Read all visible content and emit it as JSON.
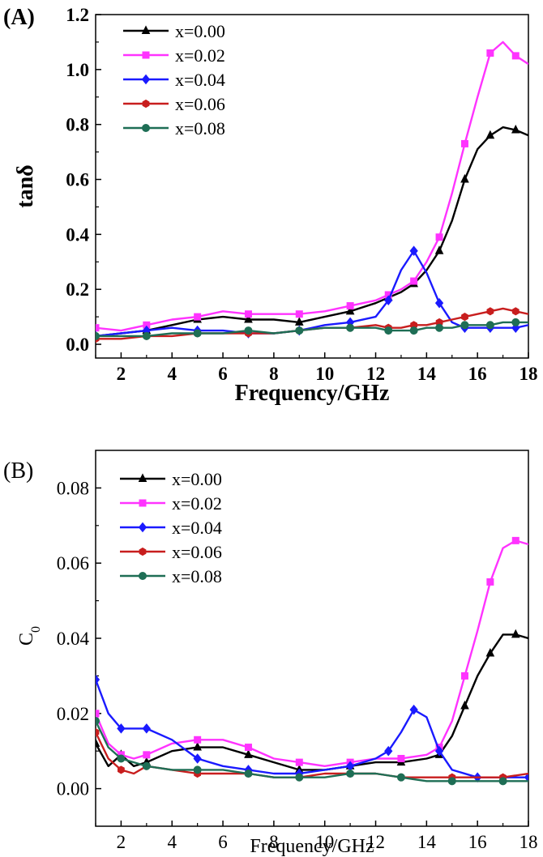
{
  "chart_data": [
    {
      "type": "line",
      "panel_label": "(A)",
      "xlabel": "Frequency/GHz",
      "ylabel": "tanδ",
      "xlim": [
        1,
        18
      ],
      "ylim": [
        -0.05,
        1.2
      ],
      "xticks": [
        2,
        4,
        6,
        8,
        10,
        12,
        14,
        16,
        18
      ],
      "yticks": [
        0.0,
        0.2,
        0.4,
        0.6,
        0.8,
        1.0,
        1.2
      ],
      "ytick_labels": [
        "0.0",
        "0.2",
        "0.4",
        "0.6",
        "0.8",
        "1.0",
        "1.2"
      ],
      "legend_position": "top-left",
      "series": [
        {
          "name": "x=0.00",
          "color": "#000000",
          "marker": "triangle",
          "x": [
            1,
            2,
            3,
            4,
            5,
            6,
            7,
            8,
            9,
            10,
            11,
            12,
            12.5,
            13,
            13.5,
            14,
            14.5,
            15,
            15.5,
            16,
            16.5,
            17,
            17.5,
            18
          ],
          "y": [
            0.03,
            0.04,
            0.05,
            0.07,
            0.09,
            0.1,
            0.09,
            0.09,
            0.08,
            0.1,
            0.12,
            0.15,
            0.17,
            0.19,
            0.22,
            0.27,
            0.34,
            0.45,
            0.6,
            0.71,
            0.76,
            0.79,
            0.78,
            0.76
          ]
        },
        {
          "name": "x=0.02",
          "color": "#ff33ff",
          "marker": "square",
          "x": [
            1,
            2,
            3,
            4,
            5,
            6,
            7,
            8,
            9,
            10,
            11,
            12,
            12.5,
            13,
            13.5,
            14,
            14.5,
            15,
            15.5,
            16,
            16.5,
            17,
            17.5,
            18
          ],
          "y": [
            0.06,
            0.05,
            0.07,
            0.09,
            0.1,
            0.12,
            0.11,
            0.11,
            0.11,
            0.12,
            0.14,
            0.16,
            0.18,
            0.2,
            0.23,
            0.3,
            0.39,
            0.55,
            0.73,
            0.9,
            1.06,
            1.1,
            1.05,
            1.02
          ]
        },
        {
          "name": "x=0.04",
          "color": "#1a1aff",
          "marker": "diamond",
          "x": [
            1,
            2,
            3,
            4,
            5,
            6,
            7,
            8,
            9,
            10,
            11,
            12,
            12.5,
            13,
            13.5,
            14,
            14.5,
            15,
            15.5,
            16,
            16.5,
            17,
            17.5,
            18
          ],
          "y": [
            0.03,
            0.04,
            0.05,
            0.06,
            0.05,
            0.05,
            0.04,
            0.04,
            0.05,
            0.07,
            0.08,
            0.1,
            0.16,
            0.27,
            0.34,
            0.26,
            0.15,
            0.08,
            0.06,
            0.06,
            0.06,
            0.06,
            0.06,
            0.07
          ]
        },
        {
          "name": "x=0.06",
          "color": "#c81e1e",
          "marker": "hexagon",
          "x": [
            1,
            2,
            3,
            4,
            5,
            6,
            7,
            8,
            9,
            10,
            11,
            12,
            12.5,
            13,
            13.5,
            14,
            14.5,
            15,
            15.5,
            16,
            16.5,
            17,
            17.5,
            18
          ],
          "y": [
            0.02,
            0.02,
            0.03,
            0.03,
            0.04,
            0.04,
            0.04,
            0.04,
            0.05,
            0.06,
            0.06,
            0.07,
            0.06,
            0.06,
            0.07,
            0.07,
            0.08,
            0.09,
            0.1,
            0.11,
            0.12,
            0.13,
            0.12,
            0.11
          ]
        },
        {
          "name": "x=0.08",
          "color": "#1e6e55",
          "marker": "circle",
          "x": [
            1,
            2,
            3,
            4,
            5,
            6,
            7,
            8,
            9,
            10,
            11,
            12,
            12.5,
            13,
            13.5,
            14,
            14.5,
            15,
            15.5,
            16,
            16.5,
            17,
            17.5,
            18
          ],
          "y": [
            0.03,
            0.03,
            0.03,
            0.04,
            0.04,
            0.04,
            0.05,
            0.04,
            0.05,
            0.06,
            0.06,
            0.06,
            0.05,
            0.05,
            0.05,
            0.06,
            0.06,
            0.06,
            0.07,
            0.07,
            0.07,
            0.08,
            0.08,
            0.08
          ]
        }
      ]
    },
    {
      "type": "line",
      "panel_label": "(B)",
      "xlabel": "Frequency/GHz",
      "ylabel": "C",
      "ylabel_subscript": "0",
      "xlim": [
        1,
        18
      ],
      "ylim": [
        -0.01,
        0.09
      ],
      "xticks": [
        2,
        4,
        6,
        8,
        10,
        12,
        14,
        16,
        18
      ],
      "yticks": [
        0.0,
        0.02,
        0.04,
        0.06,
        0.08
      ],
      "ytick_labels": [
        "0.00",
        "0.02",
        "0.04",
        "0.06",
        "0.08"
      ],
      "legend_position": "top-left",
      "series": [
        {
          "name": "x=0.00",
          "color": "#000000",
          "marker": "triangle",
          "x": [
            1,
            1.5,
            2,
            2.5,
            3,
            4,
            5,
            6,
            7,
            8,
            9,
            10,
            11,
            12,
            13,
            14,
            14.5,
            15,
            15.5,
            16,
            16.5,
            17,
            17.5,
            18
          ],
          "y": [
            0.012,
            0.006,
            0.009,
            0.006,
            0.007,
            0.01,
            0.011,
            0.011,
            0.009,
            0.007,
            0.005,
            0.005,
            0.006,
            0.007,
            0.007,
            0.008,
            0.009,
            0.014,
            0.022,
            0.03,
            0.036,
            0.041,
            0.041,
            0.04
          ]
        },
        {
          "name": "x=0.02",
          "color": "#ff33ff",
          "marker": "square",
          "x": [
            1,
            1.5,
            2,
            2.5,
            3,
            4,
            5,
            6,
            7,
            8,
            9,
            10,
            11,
            12,
            13,
            14,
            14.5,
            15,
            15.5,
            16,
            16.5,
            17,
            17.5,
            18
          ],
          "y": [
            0.02,
            0.012,
            0.009,
            0.008,
            0.009,
            0.012,
            0.013,
            0.013,
            0.011,
            0.008,
            0.007,
            0.006,
            0.007,
            0.008,
            0.008,
            0.009,
            0.011,
            0.018,
            0.03,
            0.042,
            0.055,
            0.064,
            0.066,
            0.065
          ]
        },
        {
          "name": "x=0.04",
          "color": "#1a1aff",
          "marker": "diamond",
          "x": [
            1,
            1.5,
            2,
            2.5,
            3,
            4,
            5,
            6,
            7,
            8,
            9,
            10,
            11,
            12,
            12.5,
            13,
            13.5,
            14,
            14.5,
            15,
            16,
            17,
            18
          ],
          "y": [
            0.029,
            0.02,
            0.016,
            0.016,
            0.016,
            0.013,
            0.008,
            0.006,
            0.005,
            0.004,
            0.004,
            0.005,
            0.006,
            0.008,
            0.01,
            0.015,
            0.021,
            0.019,
            0.01,
            0.005,
            0.003,
            0.003,
            0.003
          ]
        },
        {
          "name": "x=0.06",
          "color": "#c81e1e",
          "marker": "hexagon",
          "x": [
            1,
            1.5,
            2,
            2.5,
            3,
            4,
            5,
            6,
            7,
            8,
            9,
            10,
            11,
            12,
            13,
            14,
            15,
            16,
            17,
            18
          ],
          "y": [
            0.015,
            0.008,
            0.005,
            0.004,
            0.006,
            0.005,
            0.004,
            0.004,
            0.004,
            0.003,
            0.003,
            0.004,
            0.004,
            0.004,
            0.003,
            0.003,
            0.003,
            0.003,
            0.003,
            0.004
          ]
        },
        {
          "name": "x=0.08",
          "color": "#1e6e55",
          "marker": "circle",
          "x": [
            1,
            1.5,
            2,
            2.5,
            3,
            4,
            5,
            6,
            7,
            8,
            9,
            10,
            11,
            12,
            13,
            14,
            15,
            16,
            17,
            18
          ],
          "y": [
            0.018,
            0.011,
            0.008,
            0.007,
            0.006,
            0.005,
            0.005,
            0.005,
            0.004,
            0.003,
            0.003,
            0.003,
            0.004,
            0.004,
            0.003,
            0.002,
            0.002,
            0.002,
            0.002,
            0.002
          ]
        }
      ]
    }
  ]
}
